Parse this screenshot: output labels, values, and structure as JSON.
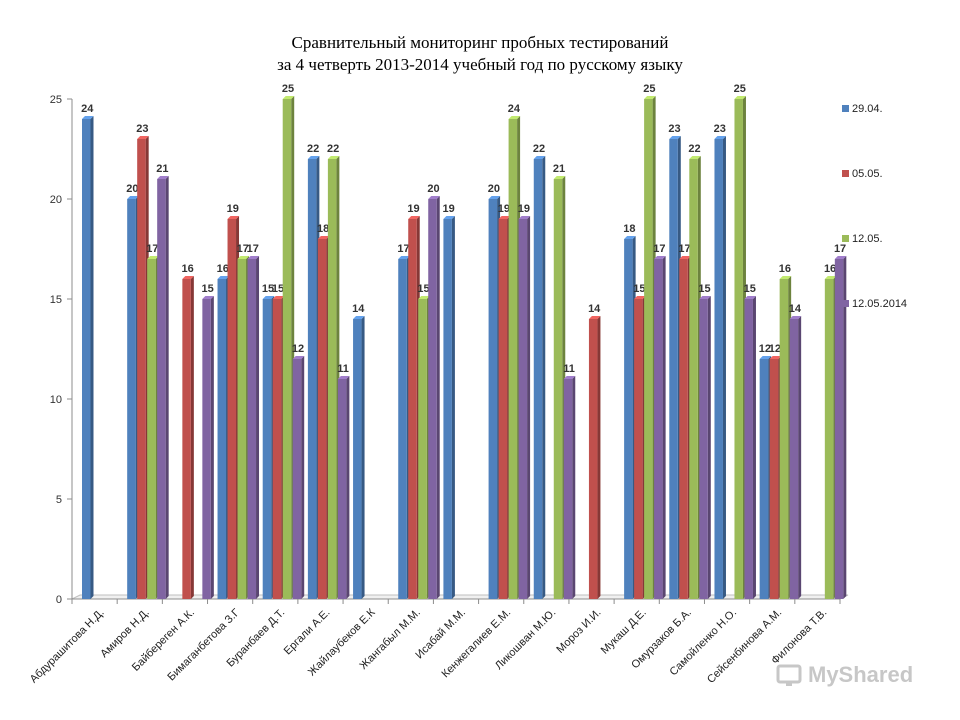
{
  "title_line1": "Сравнительный мониторинг пробных тестирований",
  "title_line2": "за 4 четверть 2013-2014 учебный год  по русскому языку",
  "watermark": "MyShared",
  "chart_data": {
    "type": "bar",
    "title": "Сравнительный мониторинг пробных тестирований за 4 четверть 2013-2014 учебный год  по русскому языку",
    "categories": [
      "Абдурашитова Н.Д.",
      "Амиров Н.Д.",
      "Байбереген А.К.",
      "Бимаганбетова З.Г",
      "Буранбаев Д.Т.",
      "Ергали А.Е.",
      "Жайлаубеков Е.К",
      "Жангабыл М.М.",
      "Исабай М.М.",
      "Кенжегалиев Е.М.",
      "Ликошван М.Ю.",
      "Мороз И.И.",
      "Мукаш Д.Е.",
      "Омурзаков Б.А.",
      "Самойленко Н.О.",
      "Сейсенбинова А.М.",
      "Филонова Т.В."
    ],
    "series": [
      {
        "name": "29.04.",
        "color": "#4f81bd",
        "values": [
          24,
          20,
          null,
          16,
          15,
          22,
          14,
          17,
          19,
          20,
          22,
          null,
          18,
          23,
          23,
          12,
          null
        ]
      },
      {
        "name": "05.05.",
        "color": "#c0504d",
        "values": [
          null,
          23,
          16,
          19,
          15,
          18,
          null,
          19,
          null,
          19,
          null,
          14,
          15,
          17,
          null,
          12,
          null
        ]
      },
      {
        "name": "12.05.",
        "color": "#9bbb59",
        "values": [
          null,
          17,
          null,
          17,
          25,
          22,
          null,
          15,
          null,
          24,
          21,
          null,
          25,
          22,
          25,
          16,
          16
        ]
      },
      {
        "name": "12.05.2014",
        "color": "#8064a2",
        "values": [
          null,
          21,
          15,
          17,
          12,
          11,
          null,
          20,
          null,
          19,
          11,
          null,
          17,
          15,
          15,
          14,
          17
        ]
      }
    ],
    "ylim": [
      0,
      25
    ],
    "yticks": [
      0,
      5,
      10,
      15,
      20,
      25
    ],
    "grid": false,
    "legend": "right",
    "xlabel": "",
    "ylabel": ""
  }
}
